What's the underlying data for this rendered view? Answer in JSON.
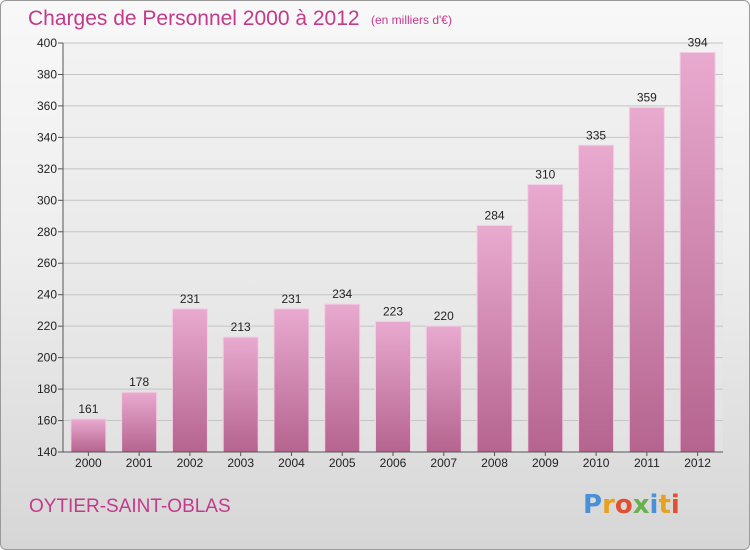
{
  "chart_data": {
    "type": "bar",
    "title": "Charges de Personnel 2000 à 2012",
    "subtitle": "(en milliers d'€)",
    "categories": [
      "2000",
      "2001",
      "2002",
      "2003",
      "2004",
      "2005",
      "2006",
      "2007",
      "2008",
      "2009",
      "2010",
      "2011",
      "2012"
    ],
    "values": [
      161,
      178,
      231,
      213,
      231,
      234,
      223,
      220,
      284,
      310,
      335,
      359,
      394
    ],
    "ylim": [
      140,
      400
    ],
    "yticks": [
      140,
      160,
      180,
      200,
      220,
      240,
      260,
      280,
      300,
      320,
      340,
      360,
      380,
      400
    ],
    "grid": true,
    "bar_color": "#c86aa0",
    "bar_color_light": "#e6a6cc"
  },
  "footer": {
    "commune": "OYTIER-SAINT-OBLAS",
    "logo_letters": [
      "P",
      "r",
      "o",
      "x",
      "i",
      "t",
      "i"
    ],
    "logo_colors": [
      "#4a90d9",
      "#e8a020",
      "#e05030",
      "#6ab04c",
      "#4a90d9",
      "#e8a020",
      "#e05030"
    ]
  }
}
